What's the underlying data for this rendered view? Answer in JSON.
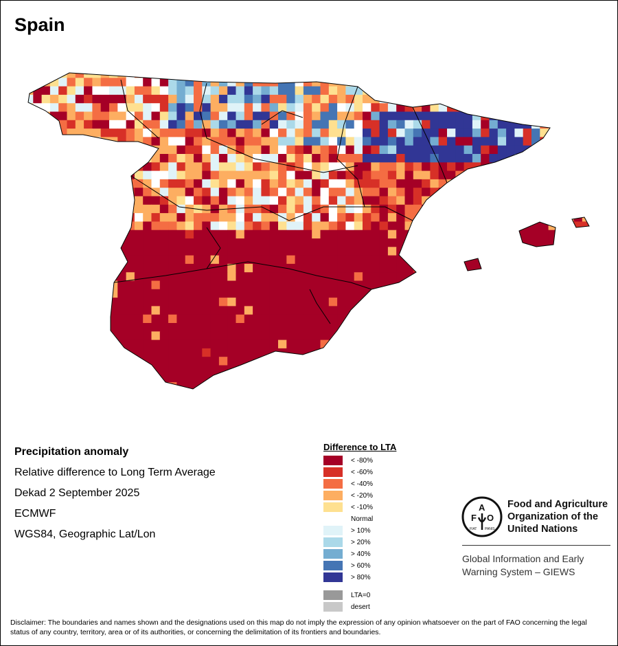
{
  "title": "Spain",
  "info": {
    "heading": "Precipitation anomaly",
    "subtitle": "Relative difference to Long Term Average",
    "period": "Dekad 2 September 2025",
    "source": "ECMWF",
    "projection": "WGS84, Geographic Lat/Lon"
  },
  "legend": {
    "title": "Difference to LTA",
    "items": [
      {
        "label": "< -80%",
        "color": "#a50026"
      },
      {
        "label": "< -60%",
        "color": "#d73027"
      },
      {
        "label": "< -40%",
        "color": "#f46d43"
      },
      {
        "label": "< -20%",
        "color": "#fdae61"
      },
      {
        "label": "< -10%",
        "color": "#fee090"
      },
      {
        "label": "Normal",
        "color": "#ffffff"
      },
      {
        "label": "> 10%",
        "color": "#e0f3f8"
      },
      {
        "label": "> 20%",
        "color": "#abd9e9"
      },
      {
        "label": "> 40%",
        "color": "#74add1"
      },
      {
        "label": "> 60%",
        "color": "#4575b4"
      },
      {
        "label": "> 80%",
        "color": "#313695"
      },
      {
        "label": "LTA=0",
        "color": "#999999"
      },
      {
        "label": "desert",
        "color": "#c8c8c8"
      }
    ]
  },
  "logo": {
    "fao_letters": "FAO",
    "motto": "FIAT PANIS",
    "org_name": [
      "Food and Agriculture",
      "Organization of the",
      "United Nations"
    ],
    "system": [
      "Global Information and Early",
      "Warning System – GIEWS"
    ]
  },
  "disclaimer": "Disclaimer: The boundaries and names shown and the designations used on this map do not imply the expression of any opinion whatsoever on the part of FAO concerning the legal status of any country, territory, area or of its authorities, or concerning the delimitation of its frontiers and boundaries."
}
